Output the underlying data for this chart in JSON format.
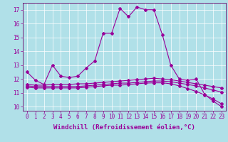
{
  "xlabel": "Windchill (Refroidissement éolien,°C)",
  "bg_color": "#b0e0e8",
  "line_color": "#990099",
  "grid_color": "#ffffff",
  "xlim": [
    -0.5,
    23.5
  ],
  "ylim": [
    9.7,
    17.5
  ],
  "xticks": [
    0,
    1,
    2,
    3,
    4,
    5,
    6,
    7,
    8,
    9,
    10,
    11,
    12,
    13,
    14,
    15,
    16,
    17,
    18,
    19,
    20,
    21,
    22,
    23
  ],
  "yticks": [
    10,
    11,
    12,
    13,
    14,
    15,
    16,
    17
  ],
  "curve1_x": [
    0,
    1,
    2,
    3,
    4,
    5,
    6,
    7,
    8,
    9,
    10,
    11,
    12,
    13,
    14,
    15,
    16,
    17,
    18,
    19,
    20,
    21,
    22,
    23
  ],
  "curve1_y": [
    12.5,
    11.9,
    11.6,
    13.0,
    12.2,
    12.1,
    12.2,
    12.8,
    13.3,
    15.3,
    15.3,
    17.1,
    16.5,
    17.2,
    17.0,
    17.0,
    15.2,
    13.0,
    12.0,
    11.9,
    12.0,
    10.9,
    10.4,
    10.0
  ],
  "curve2_x": [
    0,
    1,
    2,
    3,
    4,
    5,
    6,
    7,
    8,
    9,
    10,
    11,
    12,
    13,
    14,
    15,
    16,
    17,
    18,
    19,
    20,
    21,
    22,
    23
  ],
  "curve2_y": [
    11.6,
    11.55,
    11.55,
    11.6,
    11.6,
    11.6,
    11.65,
    11.65,
    11.7,
    11.75,
    11.8,
    11.85,
    11.9,
    11.95,
    12.0,
    12.05,
    12.0,
    11.95,
    11.85,
    11.75,
    11.65,
    11.55,
    11.45,
    11.35
  ],
  "curve3_x": [
    0,
    1,
    2,
    3,
    4,
    5,
    6,
    7,
    8,
    9,
    10,
    11,
    12,
    13,
    14,
    15,
    16,
    17,
    18,
    19,
    20,
    21,
    22,
    23
  ],
  "curve3_y": [
    11.5,
    11.45,
    11.45,
    11.45,
    11.45,
    11.45,
    11.45,
    11.5,
    11.55,
    11.6,
    11.65,
    11.7,
    11.7,
    11.75,
    11.8,
    11.85,
    11.85,
    11.8,
    11.7,
    11.6,
    11.5,
    11.35,
    11.2,
    11.05
  ],
  "curve4_x": [
    0,
    1,
    2,
    3,
    4,
    5,
    6,
    7,
    8,
    9,
    10,
    11,
    12,
    13,
    14,
    15,
    16,
    17,
    18,
    19,
    20,
    21,
    22,
    23
  ],
  "curve4_y": [
    11.4,
    11.35,
    11.35,
    11.35,
    11.35,
    11.35,
    11.35,
    11.4,
    11.45,
    11.5,
    11.55,
    11.55,
    11.6,
    11.65,
    11.7,
    11.72,
    11.72,
    11.65,
    11.5,
    11.3,
    11.1,
    10.85,
    10.55,
    10.2
  ],
  "marker": "D",
  "markersize": 2.0,
  "linewidth": 0.8,
  "xlabel_fontsize": 6.5,
  "tick_fontsize": 5.5,
  "tick_color": "#990099",
  "axis_color": "#660066"
}
